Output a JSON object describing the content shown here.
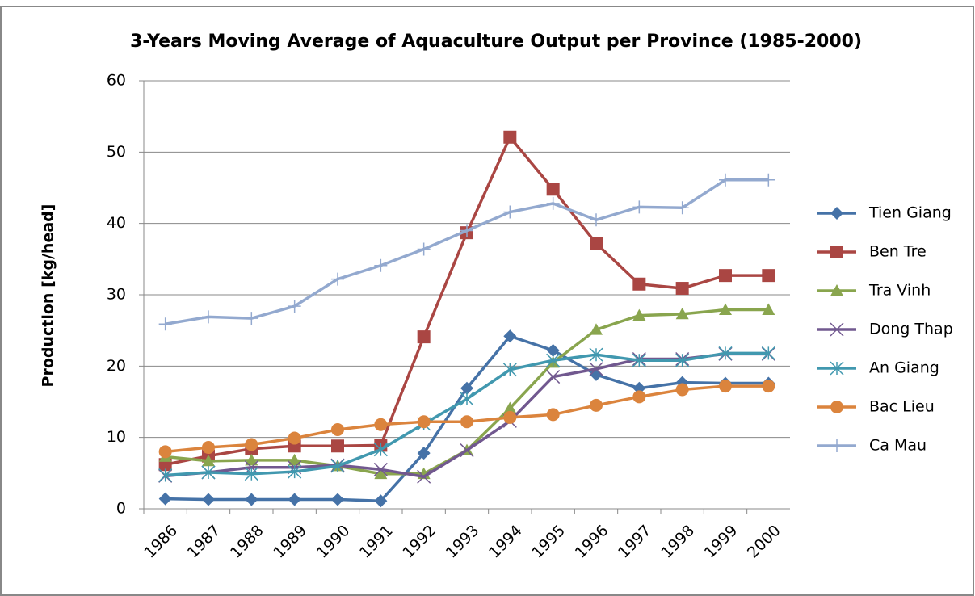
{
  "chart_data": {
    "type": "line",
    "title": "3-Years Moving Average  of Aquaculture Output per Province (1985-2000)",
    "y_label": "Production [kg/head]",
    "categories": [
      "1986",
      "1987",
      "1988",
      "1989",
      "1990",
      "1991",
      "1992",
      "1993",
      "1994",
      "1995",
      "1996",
      "1997",
      "1998",
      "1999",
      "2000"
    ],
    "ylim": [
      0,
      60
    ],
    "yticks": [
      0,
      10,
      20,
      30,
      40,
      50,
      60
    ],
    "grid": true,
    "legend": "right",
    "series": [
      {
        "name": "Tien Giang",
        "color": "#4572a7",
        "marker": "diamond",
        "values": [
          1.4,
          1.3,
          1.3,
          1.3,
          1.3,
          1.1,
          7.8,
          16.9,
          24.2,
          22.2,
          18.8,
          16.9,
          17.7,
          17.6,
          17.6
        ]
      },
      {
        "name": "Ben Tre",
        "color": "#aa4643",
        "marker": "square",
        "values": [
          6.2,
          7.4,
          8.4,
          8.8,
          8.8,
          8.9,
          24.1,
          38.7,
          52.1,
          44.8,
          37.2,
          31.5,
          30.9,
          32.7,
          32.7
        ]
      },
      {
        "name": "Tra Vinh",
        "color": "#89a54e",
        "marker": "triangle",
        "values": [
          7.3,
          6.7,
          6.8,
          6.8,
          6.0,
          4.9,
          4.9,
          8.2,
          14.1,
          20.5,
          25.1,
          27.1,
          27.3,
          27.9,
          27.9
        ]
      },
      {
        "name": "Dong Thap",
        "color": "#71588f",
        "marker": "x",
        "values": [
          4.6,
          5.1,
          5.8,
          5.8,
          6.1,
          5.5,
          4.5,
          8.2,
          12.3,
          18.5,
          19.6,
          21.0,
          21.0,
          21.7,
          21.7
        ]
      },
      {
        "name": "An Giang",
        "color": "#4198af",
        "marker": "star",
        "values": [
          4.7,
          5.1,
          4.9,
          5.2,
          6.0,
          8.3,
          11.9,
          15.4,
          19.5,
          20.8,
          21.6,
          20.8,
          20.8,
          21.8,
          21.8
        ]
      },
      {
        "name": "Bac Lieu",
        "color": "#db843d",
        "marker": "circle",
        "values": [
          8.0,
          8.6,
          9.0,
          9.9,
          11.1,
          11.8,
          12.2,
          12.2,
          12.8,
          13.2,
          14.5,
          15.7,
          16.7,
          17.2,
          17.2
        ]
      },
      {
        "name": "Ca Mau",
        "color": "#93a9cf",
        "marker": "plus",
        "values": [
          25.9,
          26.9,
          26.7,
          28.4,
          32.2,
          34.1,
          36.4,
          39.0,
          41.6,
          42.8,
          40.5,
          42.3,
          42.2,
          46.1,
          46.1
        ]
      }
    ]
  }
}
